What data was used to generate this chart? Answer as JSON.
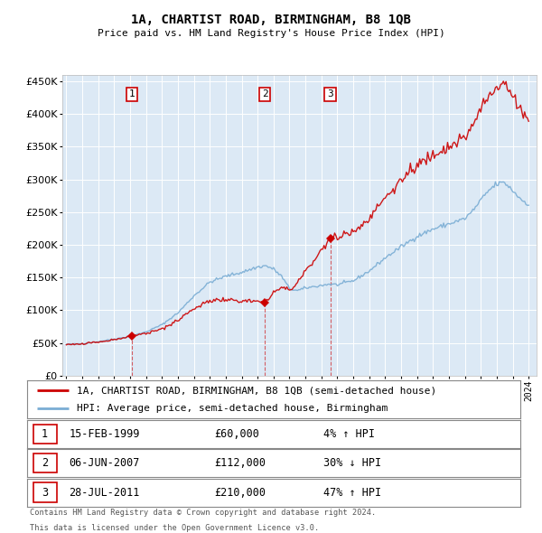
{
  "title": "1A, CHARTIST ROAD, BIRMINGHAM, B8 1QB",
  "subtitle": "Price paid vs. HM Land Registry's House Price Index (HPI)",
  "plot_bg_color": "#dce9f5",
  "red_line_color": "#cc0000",
  "blue_line_color": "#7aadd4",
  "ylim": [
    0,
    460000
  ],
  "yticks": [
    0,
    50000,
    100000,
    150000,
    200000,
    250000,
    300000,
    350000,
    400000,
    450000
  ],
  "sales": [
    {
      "date": "15-FEB-1999",
      "year": 1999.12,
      "price": 60000,
      "label": "1",
      "pct": "4%",
      "dir": "↑"
    },
    {
      "date": "06-JUN-2007",
      "year": 2007.45,
      "price": 112000,
      "label": "2",
      "pct": "30%",
      "dir": "↓"
    },
    {
      "date": "28-JUL-2011",
      "year": 2011.56,
      "price": 210000,
      "label": "3",
      "pct": "47%",
      "dir": "↑"
    }
  ],
  "legend_line1": "1A, CHARTIST ROAD, BIRMINGHAM, B8 1QB (semi-detached house)",
  "legend_line2": "HPI: Average price, semi-detached house, Birmingham",
  "table_rows": [
    [
      "1",
      "15-FEB-1999",
      "£60,000",
      "4% ↑ HPI"
    ],
    [
      "2",
      "06-JUN-2007",
      "£112,000",
      "30% ↓ HPI"
    ],
    [
      "3",
      "28-JUL-2011",
      "£210,000",
      "47% ↑ HPI"
    ]
  ],
  "footer1": "Contains HM Land Registry data © Crown copyright and database right 2024.",
  "footer2": "This data is licensed under the Open Government Licence v3.0."
}
